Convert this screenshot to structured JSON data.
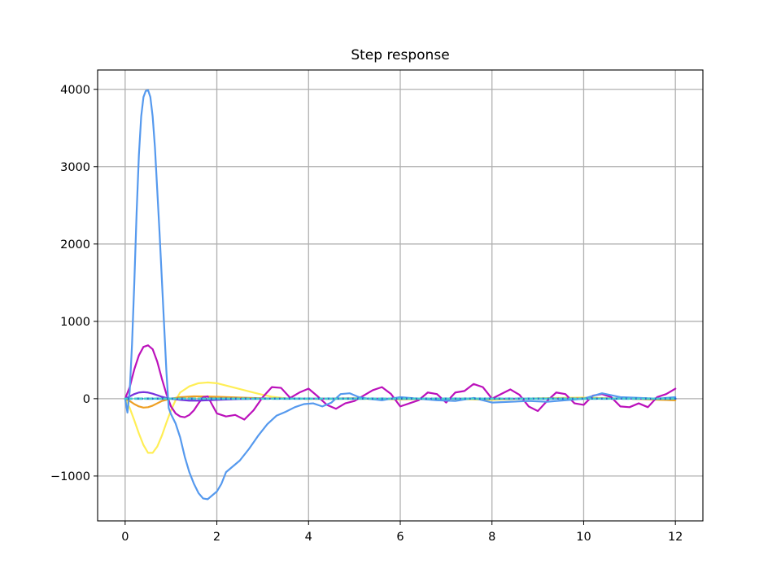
{
  "chart_data": {
    "type": "line",
    "title": "Step response",
    "xlabel": "",
    "ylabel": "",
    "xlim": [
      -0.6,
      12.6
    ],
    "ylim": [
      -1580,
      4250
    ],
    "grid": true,
    "xticks": [
      0,
      2,
      4,
      6,
      8,
      10,
      12
    ],
    "xtick_labels": [
      "0",
      "2",
      "4",
      "6",
      "8",
      "10",
      "12"
    ],
    "yticks": [
      -1000,
      0,
      1000,
      2000,
      3000,
      4000
    ],
    "ytick_labels": [
      "−1000",
      "0",
      "1000",
      "2000",
      "3000",
      "4000"
    ],
    "series": [
      {
        "color": "#ffee55",
        "style": "solid",
        "x": [
          0,
          0.1,
          0.2,
          0.3,
          0.4,
          0.5,
          0.6,
          0.7,
          0.8,
          0.9,
          1.0,
          1.1,
          1.2,
          1.4,
          1.6,
          1.8,
          2.0,
          2.2,
          2.4,
          2.6,
          2.8,
          3.0,
          3.2,
          3.5,
          4.0,
          5.0,
          6.0,
          7.0,
          8.0,
          9.0,
          10.0,
          11.0,
          12.0
        ],
        "y": [
          0,
          -120,
          -280,
          -450,
          -600,
          -700,
          -700,
          -620,
          -480,
          -310,
          -150,
          -20,
          80,
          160,
          200,
          210,
          200,
          170,
          140,
          110,
          80,
          50,
          25,
          5,
          -5,
          0,
          -10,
          0,
          -15,
          5,
          15,
          0,
          -20
        ]
      },
      {
        "color": "#ee9f22",
        "style": "solid",
        "x": [
          0,
          0.1,
          0.2,
          0.3,
          0.4,
          0.5,
          0.6,
          0.7,
          0.8,
          1.0,
          1.2,
          1.5,
          2.0,
          2.5,
          3.0,
          4.0,
          5.0,
          6.0,
          7.0,
          8.0,
          9.0,
          10.0,
          11.0,
          12.0
        ],
        "y": [
          0,
          -30,
          -70,
          -100,
          -115,
          -110,
          -90,
          -60,
          -30,
          0,
          20,
          30,
          25,
          15,
          5,
          0,
          5,
          -5,
          0,
          -5,
          0,
          5,
          0,
          -20
        ]
      },
      {
        "color": "#bb11bb",
        "style": "solid",
        "x": [
          0,
          0.1,
          0.2,
          0.3,
          0.4,
          0.5,
          0.6,
          0.7,
          0.8,
          0.9,
          1.0,
          1.1,
          1.2,
          1.3,
          1.4,
          1.5,
          1.6,
          1.7,
          1.8,
          1.9,
          2.0,
          2.2,
          2.4,
          2.6,
          2.8,
          3.0,
          3.2,
          3.4,
          3.6,
          3.8,
          4.0,
          4.2,
          4.4,
          4.6,
          4.8,
          5.0,
          5.2,
          5.4,
          5.6,
          5.8,
          6.0,
          6.2,
          6.4,
          6.6,
          6.8,
          7.0,
          7.2,
          7.4,
          7.6,
          7.8,
          8.0,
          8.2,
          8.4,
          8.6,
          8.8,
          9.0,
          9.2,
          9.4,
          9.6,
          9.8,
          10.0,
          10.2,
          10.4,
          10.6,
          10.8,
          11.0,
          11.2,
          11.4,
          11.6,
          11.8,
          12.0
        ],
        "y": [
          0,
          150,
          380,
          560,
          670,
          690,
          640,
          480,
          260,
          60,
          -100,
          -190,
          -230,
          -240,
          -210,
          -150,
          -60,
          20,
          30,
          -80,
          -190,
          -230,
          -210,
          -270,
          -150,
          20,
          150,
          140,
          10,
          80,
          130,
          30,
          -80,
          -130,
          -60,
          -30,
          40,
          110,
          150,
          60,
          -100,
          -60,
          -20,
          80,
          60,
          -50,
          80,
          100,
          190,
          150,
          0,
          60,
          120,
          50,
          -100,
          -160,
          -30,
          80,
          60,
          -60,
          -80,
          40,
          60,
          20,
          -100,
          -110,
          -60,
          -110,
          20,
          60,
          130
        ]
      },
      {
        "color": "#7733dd",
        "style": "solid",
        "x": [
          0,
          0.1,
          0.2,
          0.3,
          0.4,
          0.5,
          0.6,
          0.7,
          0.8,
          0.9,
          1.0,
          1.2,
          1.4,
          1.6,
          1.8,
          2.0,
          2.5,
          3.0,
          4.0,
          5.0,
          6.0,
          7.0,
          8.0,
          9.0,
          10.0,
          11.0,
          12.0
        ],
        "y": [
          0,
          30,
          60,
          80,
          85,
          80,
          65,
          45,
          25,
          10,
          0,
          -15,
          -25,
          -25,
          -20,
          -15,
          -5,
          0,
          0,
          0,
          0,
          0,
          0,
          0,
          0,
          0,
          0
        ]
      },
      {
        "color": "#5599ee",
        "style": "solid",
        "x": [
          0,
          0.05,
          0.1,
          0.15,
          0.2,
          0.25,
          0.3,
          0.35,
          0.4,
          0.45,
          0.5,
          0.55,
          0.6,
          0.65,
          0.7,
          0.75,
          0.8,
          0.85,
          0.9,
          0.95,
          1.0,
          1.1,
          1.2,
          1.3,
          1.4,
          1.5,
          1.6,
          1.7,
          1.8,
          1.9,
          2.0,
          2.1,
          2.2,
          2.3,
          2.5,
          2.7,
          2.9,
          3.1,
          3.3,
          3.5,
          3.7,
          3.9,
          4.1,
          4.3,
          4.5,
          4.7,
          4.9,
          5.1,
          5.3,
          5.6,
          6.0,
          6.4,
          6.8,
          7.2,
          7.6,
          8.0,
          8.4,
          8.8,
          9.2,
          9.6,
          10.0,
          10.4,
          10.8,
          11.2,
          11.6,
          12.0
        ],
        "y": [
          0,
          -180,
          100,
          700,
          1500,
          2400,
          3150,
          3650,
          3900,
          3980,
          3990,
          3900,
          3650,
          3250,
          2700,
          2150,
          1550,
          950,
          350,
          -120,
          -200,
          -320,
          -500,
          -750,
          -950,
          -1100,
          -1220,
          -1290,
          -1300,
          -1250,
          -1200,
          -1100,
          -950,
          -900,
          -800,
          -650,
          -480,
          -330,
          -220,
          -170,
          -110,
          -70,
          -60,
          -100,
          -50,
          60,
          70,
          20,
          0,
          -20,
          20,
          0,
          -20,
          -30,
          10,
          -50,
          -40,
          -30,
          -40,
          -20,
          0,
          70,
          20,
          10,
          0,
          20
        ]
      },
      {
        "color": "#2266cc",
        "style": "dashed",
        "x": [
          0,
          1,
          2,
          3,
          4,
          5,
          6,
          7,
          8,
          9,
          10,
          11,
          12
        ],
        "y": [
          0,
          0,
          0,
          0,
          0,
          0,
          0,
          0,
          0,
          0,
          0,
          0,
          0
        ]
      },
      {
        "color": "#44cccc",
        "style": "dotted",
        "x": [
          0,
          1,
          2,
          3,
          4,
          5,
          6,
          7,
          8,
          9,
          10,
          11,
          12
        ],
        "y": [
          0,
          0,
          0,
          0,
          0,
          0,
          0,
          0,
          0,
          0,
          0,
          0,
          0
        ]
      }
    ]
  }
}
